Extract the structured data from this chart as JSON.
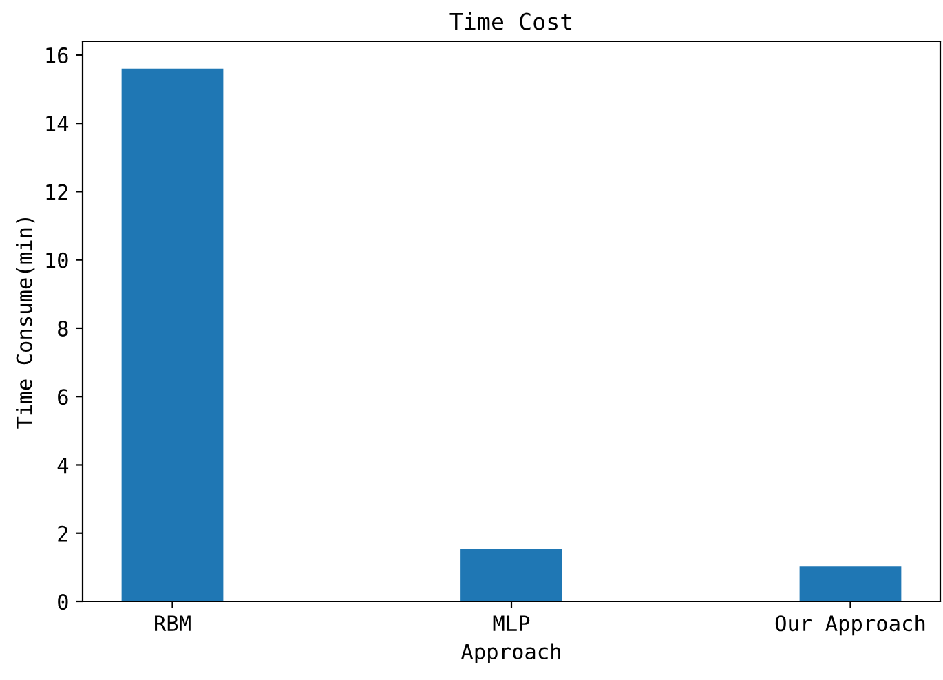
{
  "chart_data": {
    "type": "bar",
    "title": "Time Cost",
    "xlabel": "Approach",
    "ylabel": "Time Consume(min)",
    "categories": [
      "RBM",
      "MLP",
      "Our Approach"
    ],
    "series": [
      {
        "color": "#1f77b4",
        "values": [
          15.6,
          1.55,
          1.02
        ]
      }
    ],
    "ylim": [
      0,
      16.4
    ],
    "yticks": [
      0,
      2,
      4,
      6,
      8,
      10,
      12,
      14,
      16
    ],
    "grid": false,
    "legend": false
  }
}
